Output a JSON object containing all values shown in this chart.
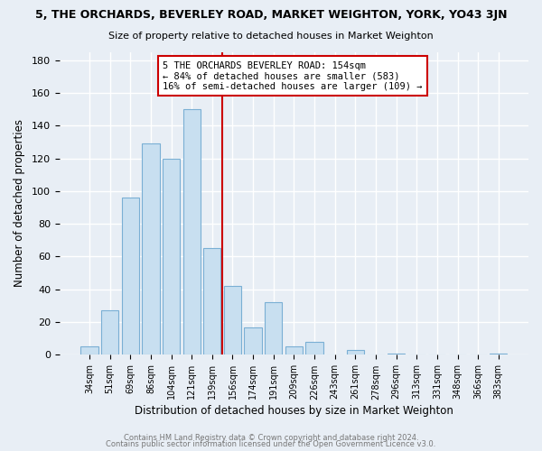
{
  "title": "5, THE ORCHARDS, BEVERLEY ROAD, MARKET WEIGHTON, YORK, YO43 3JN",
  "subtitle": "Size of property relative to detached houses in Market Weighton",
  "xlabel": "Distribution of detached houses by size in Market Weighton",
  "ylabel": "Number of detached properties",
  "bar_labels": [
    "34sqm",
    "51sqm",
    "69sqm",
    "86sqm",
    "104sqm",
    "121sqm",
    "139sqm",
    "156sqm",
    "174sqm",
    "191sqm",
    "209sqm",
    "226sqm",
    "243sqm",
    "261sqm",
    "278sqm",
    "296sqm",
    "313sqm",
    "331sqm",
    "348sqm",
    "366sqm",
    "383sqm"
  ],
  "bar_values": [
    5,
    27,
    96,
    129,
    120,
    150,
    65,
    42,
    17,
    32,
    5,
    8,
    0,
    3,
    0,
    1,
    0,
    0,
    0,
    0,
    1
  ],
  "bar_color": "#c8dff0",
  "bar_edge_color": "#7aafd4",
  "vline_color": "#cc0000",
  "annotation_line1": "5 THE ORCHARDS BEVERLEY ROAD: 154sqm",
  "annotation_line2": "← 84% of detached houses are smaller (583)",
  "annotation_line3": "16% of semi-detached houses are larger (109) →",
  "annotation_box_color": "#ffffff",
  "annotation_box_edge": "#cc0000",
  "ylim": [
    0,
    185
  ],
  "yticks": [
    0,
    20,
    40,
    60,
    80,
    100,
    120,
    140,
    160,
    180
  ],
  "footer1": "Contains HM Land Registry data © Crown copyright and database right 2024.",
  "footer2": "Contains public sector information licensed under the Open Government Licence v3.0.",
  "bg_color": "#e8eef5",
  "grid_color": "#ffffff",
  "spine_color": "#aaaaaa"
}
